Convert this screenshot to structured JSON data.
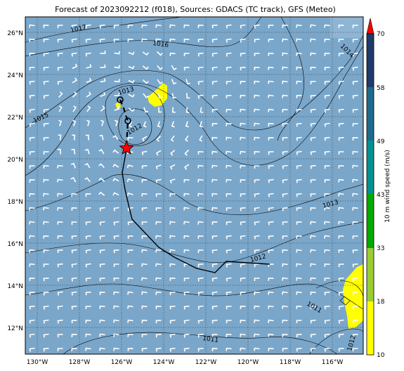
{
  "title": "Forecast of 2023092212 (f018), Sources: GDACS (TC track), GFS (Meteo)",
  "lat_labels": [
    "26°N",
    "24°N",
    "22°N",
    "20°N",
    "18°N",
    "16°N",
    "14°N",
    "12°N"
  ],
  "lon_labels": [
    "130°W",
    "128°W",
    "126°W",
    "124°W",
    "122°W",
    "120°W",
    "118°W",
    "116°W"
  ],
  "isobar_labels": [
    "1017",
    "1016",
    "1014",
    "1015",
    "1013",
    "1012",
    "1013",
    "1012",
    "1011",
    "1011",
    "1012"
  ],
  "colorbar": {
    "title": "10 m wind speed (m/s)",
    "ticks": [
      "10",
      "18",
      "33",
      "43",
      "49",
      "58",
      "70"
    ],
    "colors": [
      "#ffff00",
      "#9acd32",
      "#00a800",
      "#009090",
      "#1e6a8c",
      "#1f3a6b",
      "#ff0000"
    ]
  },
  "colors": {
    "ocean": "#7aa6c9",
    "wind_speed_high": "#ffff00",
    "track": "#000000",
    "storm_marker": "#ff0000"
  },
  "storm": {
    "marker": "star-icon",
    "position_lat": 20.5,
    "position_lon": -125.8
  }
}
